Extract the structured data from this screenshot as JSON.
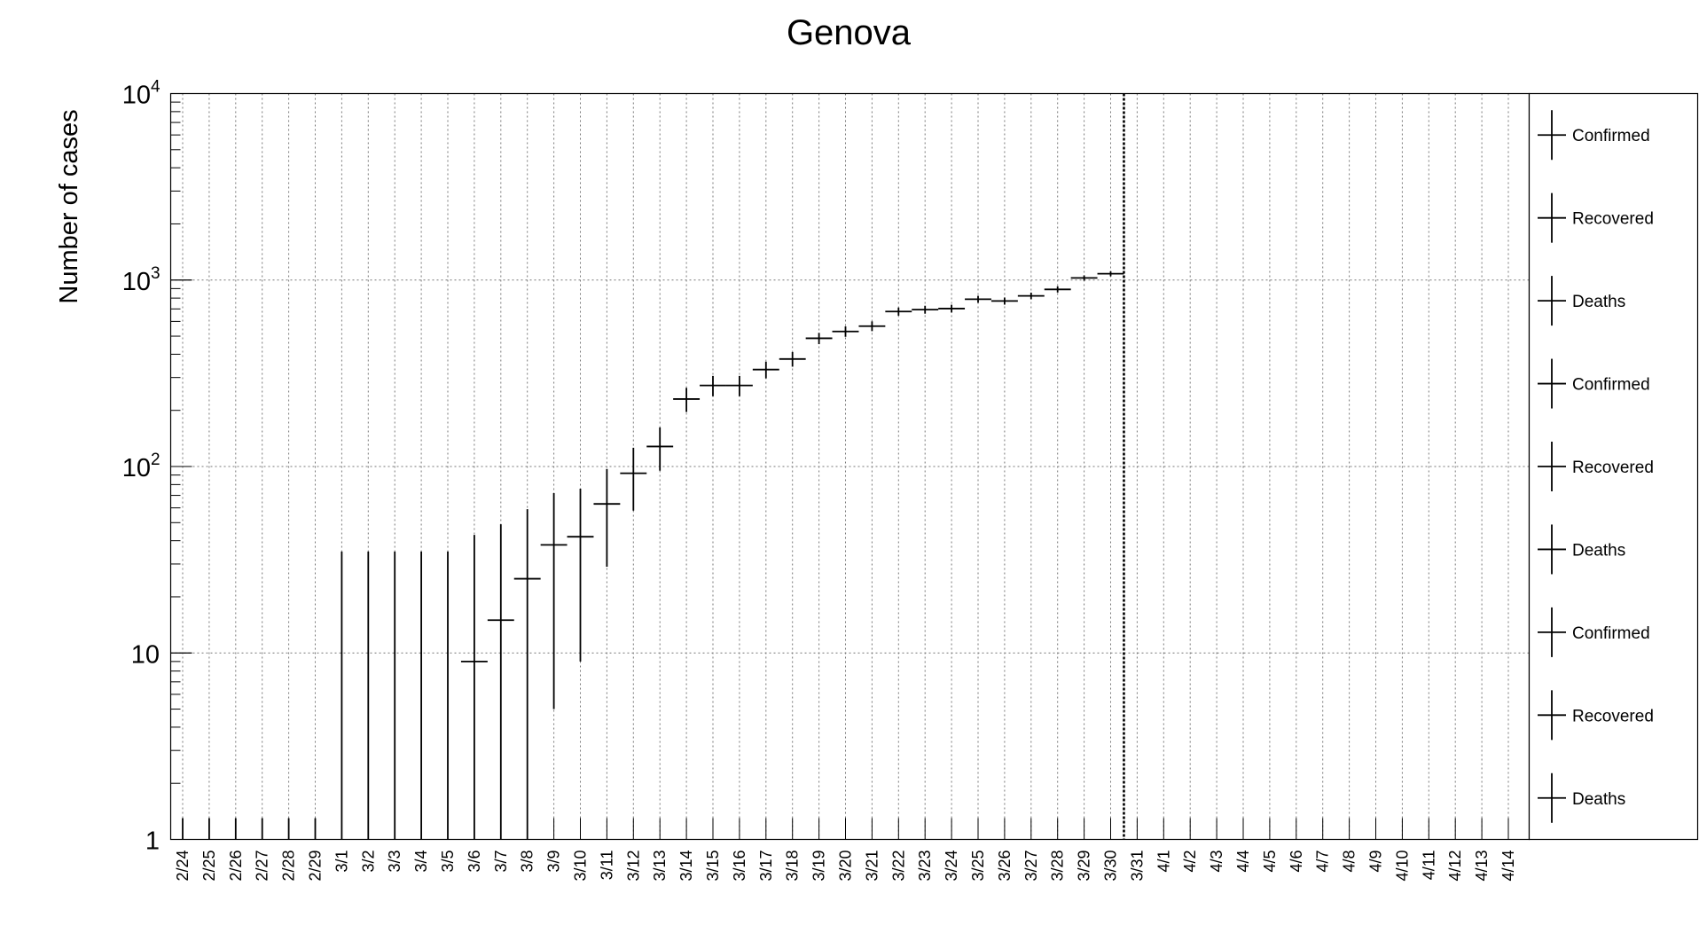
{
  "chart_data": {
    "type": "scatter",
    "title": "Genova",
    "ylabel": "Number of cases",
    "xlabel": "",
    "y_scale": "log",
    "ylim": [
      1,
      10000
    ],
    "grid": true,
    "legend_position": "right",
    "y_tick_labels": [
      {
        "value": 1,
        "base": "1",
        "exp": ""
      },
      {
        "value": 10,
        "base": "10",
        "exp": ""
      },
      {
        "value": 100,
        "base": "10",
        "exp": "2"
      },
      {
        "value": 1000,
        "base": "10",
        "exp": "3"
      },
      {
        "value": 10000,
        "base": "10",
        "exp": "4"
      }
    ],
    "categories": [
      "2/24",
      "2/25",
      "2/26",
      "2/27",
      "2/28",
      "2/29",
      "3/1",
      "3/2",
      "3/3",
      "3/4",
      "3/5",
      "3/6",
      "3/7",
      "3/8",
      "3/9",
      "3/10",
      "3/11",
      "3/12",
      "3/13",
      "3/14",
      "3/15",
      "3/16",
      "3/17",
      "3/18",
      "3/19",
      "3/20",
      "3/21",
      "3/22",
      "3/23",
      "3/24",
      "3/25",
      "3/26",
      "3/27",
      "3/28",
      "3/29",
      "3/30",
      "3/31",
      "4/1",
      "4/2",
      "4/3",
      "4/4",
      "4/5",
      "4/6",
      "4/7",
      "4/8",
      "4/9",
      "4/10",
      "4/11",
      "4/12",
      "4/13",
      "4/14"
    ],
    "marker_date": "3/30",
    "series": [
      {
        "name": "Confirmed",
        "points": [
          {
            "x": "2/24",
            "y": 0,
            "err_high": 1.3
          },
          {
            "x": "2/25",
            "y": 0,
            "err_high": 1.3
          },
          {
            "x": "2/26",
            "y": 0,
            "err_high": 1.3
          },
          {
            "x": "2/27",
            "y": 0,
            "err_high": 1.3
          },
          {
            "x": "2/28",
            "y": 0,
            "err_high": 1.3
          },
          {
            "x": "2/29",
            "y": 0,
            "err_high": 1.3
          },
          {
            "x": "3/1",
            "y": 0,
            "err_high": 35
          },
          {
            "x": "3/2",
            "y": 0,
            "err_high": 35
          },
          {
            "x": "3/3",
            "y": 0,
            "err_high": 35
          },
          {
            "x": "3/4",
            "y": 0,
            "err_high": 35
          },
          {
            "x": "3/5",
            "y": 0,
            "err_high": 35
          },
          {
            "x": "3/6",
            "y": 9,
            "err_low": 1,
            "err_high": 43
          },
          {
            "x": "3/7",
            "y": 15,
            "err_low": 1,
            "err_high": 49
          },
          {
            "x": "3/8",
            "y": 25,
            "err_low": 1,
            "err_high": 59
          },
          {
            "x": "3/9",
            "y": 38,
            "err_low": 5,
            "err_high": 72
          },
          {
            "x": "3/10",
            "y": 42,
            "err_low": 9,
            "err_high": 76
          },
          {
            "x": "3/11",
            "y": 63,
            "err_low": 29,
            "err_high": 97
          },
          {
            "x": "3/12",
            "y": 92,
            "err_low": 58,
            "err_high": 126
          },
          {
            "x": "3/13",
            "y": 128,
            "err_low": 95,
            "err_high": 162
          },
          {
            "x": "3/14",
            "y": 230,
            "err_low": 196,
            "err_high": 264
          },
          {
            "x": "3/15",
            "y": 272,
            "err_low": 238,
            "err_high": 306
          },
          {
            "x": "3/16",
            "y": 272,
            "err_low": 238,
            "err_high": 306
          },
          {
            "x": "3/17",
            "y": 331,
            "err_low": 297,
            "err_high": 365
          },
          {
            "x": "3/18",
            "y": 377,
            "err_low": 343,
            "err_high": 411
          },
          {
            "x": "3/19",
            "y": 487,
            "err_low": 453,
            "err_high": 521
          },
          {
            "x": "3/20",
            "y": 530,
            "err_low": 496,
            "err_high": 564
          },
          {
            "x": "3/21",
            "y": 566,
            "err_low": 532,
            "err_high": 600
          },
          {
            "x": "3/22",
            "y": 678,
            "err_low": 644,
            "err_high": 712
          },
          {
            "x": "3/23",
            "y": 694,
            "err_low": 660,
            "err_high": 728
          },
          {
            "x": "3/24",
            "y": 703,
            "err_low": 669,
            "err_high": 737
          },
          {
            "x": "3/25",
            "y": 789,
            "err_low": 755,
            "err_high": 823
          },
          {
            "x": "3/26",
            "y": 772,
            "err_low": 738,
            "err_high": 806
          },
          {
            "x": "3/27",
            "y": 822,
            "err_low": 788,
            "err_high": 856
          },
          {
            "x": "3/28",
            "y": 891,
            "err_low": 857,
            "err_high": 925
          },
          {
            "x": "3/29",
            "y": 1026,
            "err_low": 992,
            "err_high": 1060
          },
          {
            "x": "3/30",
            "y": 1081,
            "err_low": 1047,
            "err_high": 1115
          }
        ]
      }
    ],
    "legend": [
      {
        "label": "Confirmed"
      },
      {
        "label": "Recovered"
      },
      {
        "label": "Deaths"
      },
      {
        "label": "Confirmed"
      },
      {
        "label": "Recovered"
      },
      {
        "label": "Deaths"
      },
      {
        "label": "Confirmed"
      },
      {
        "label": "Recovered"
      },
      {
        "label": "Deaths"
      }
    ]
  }
}
